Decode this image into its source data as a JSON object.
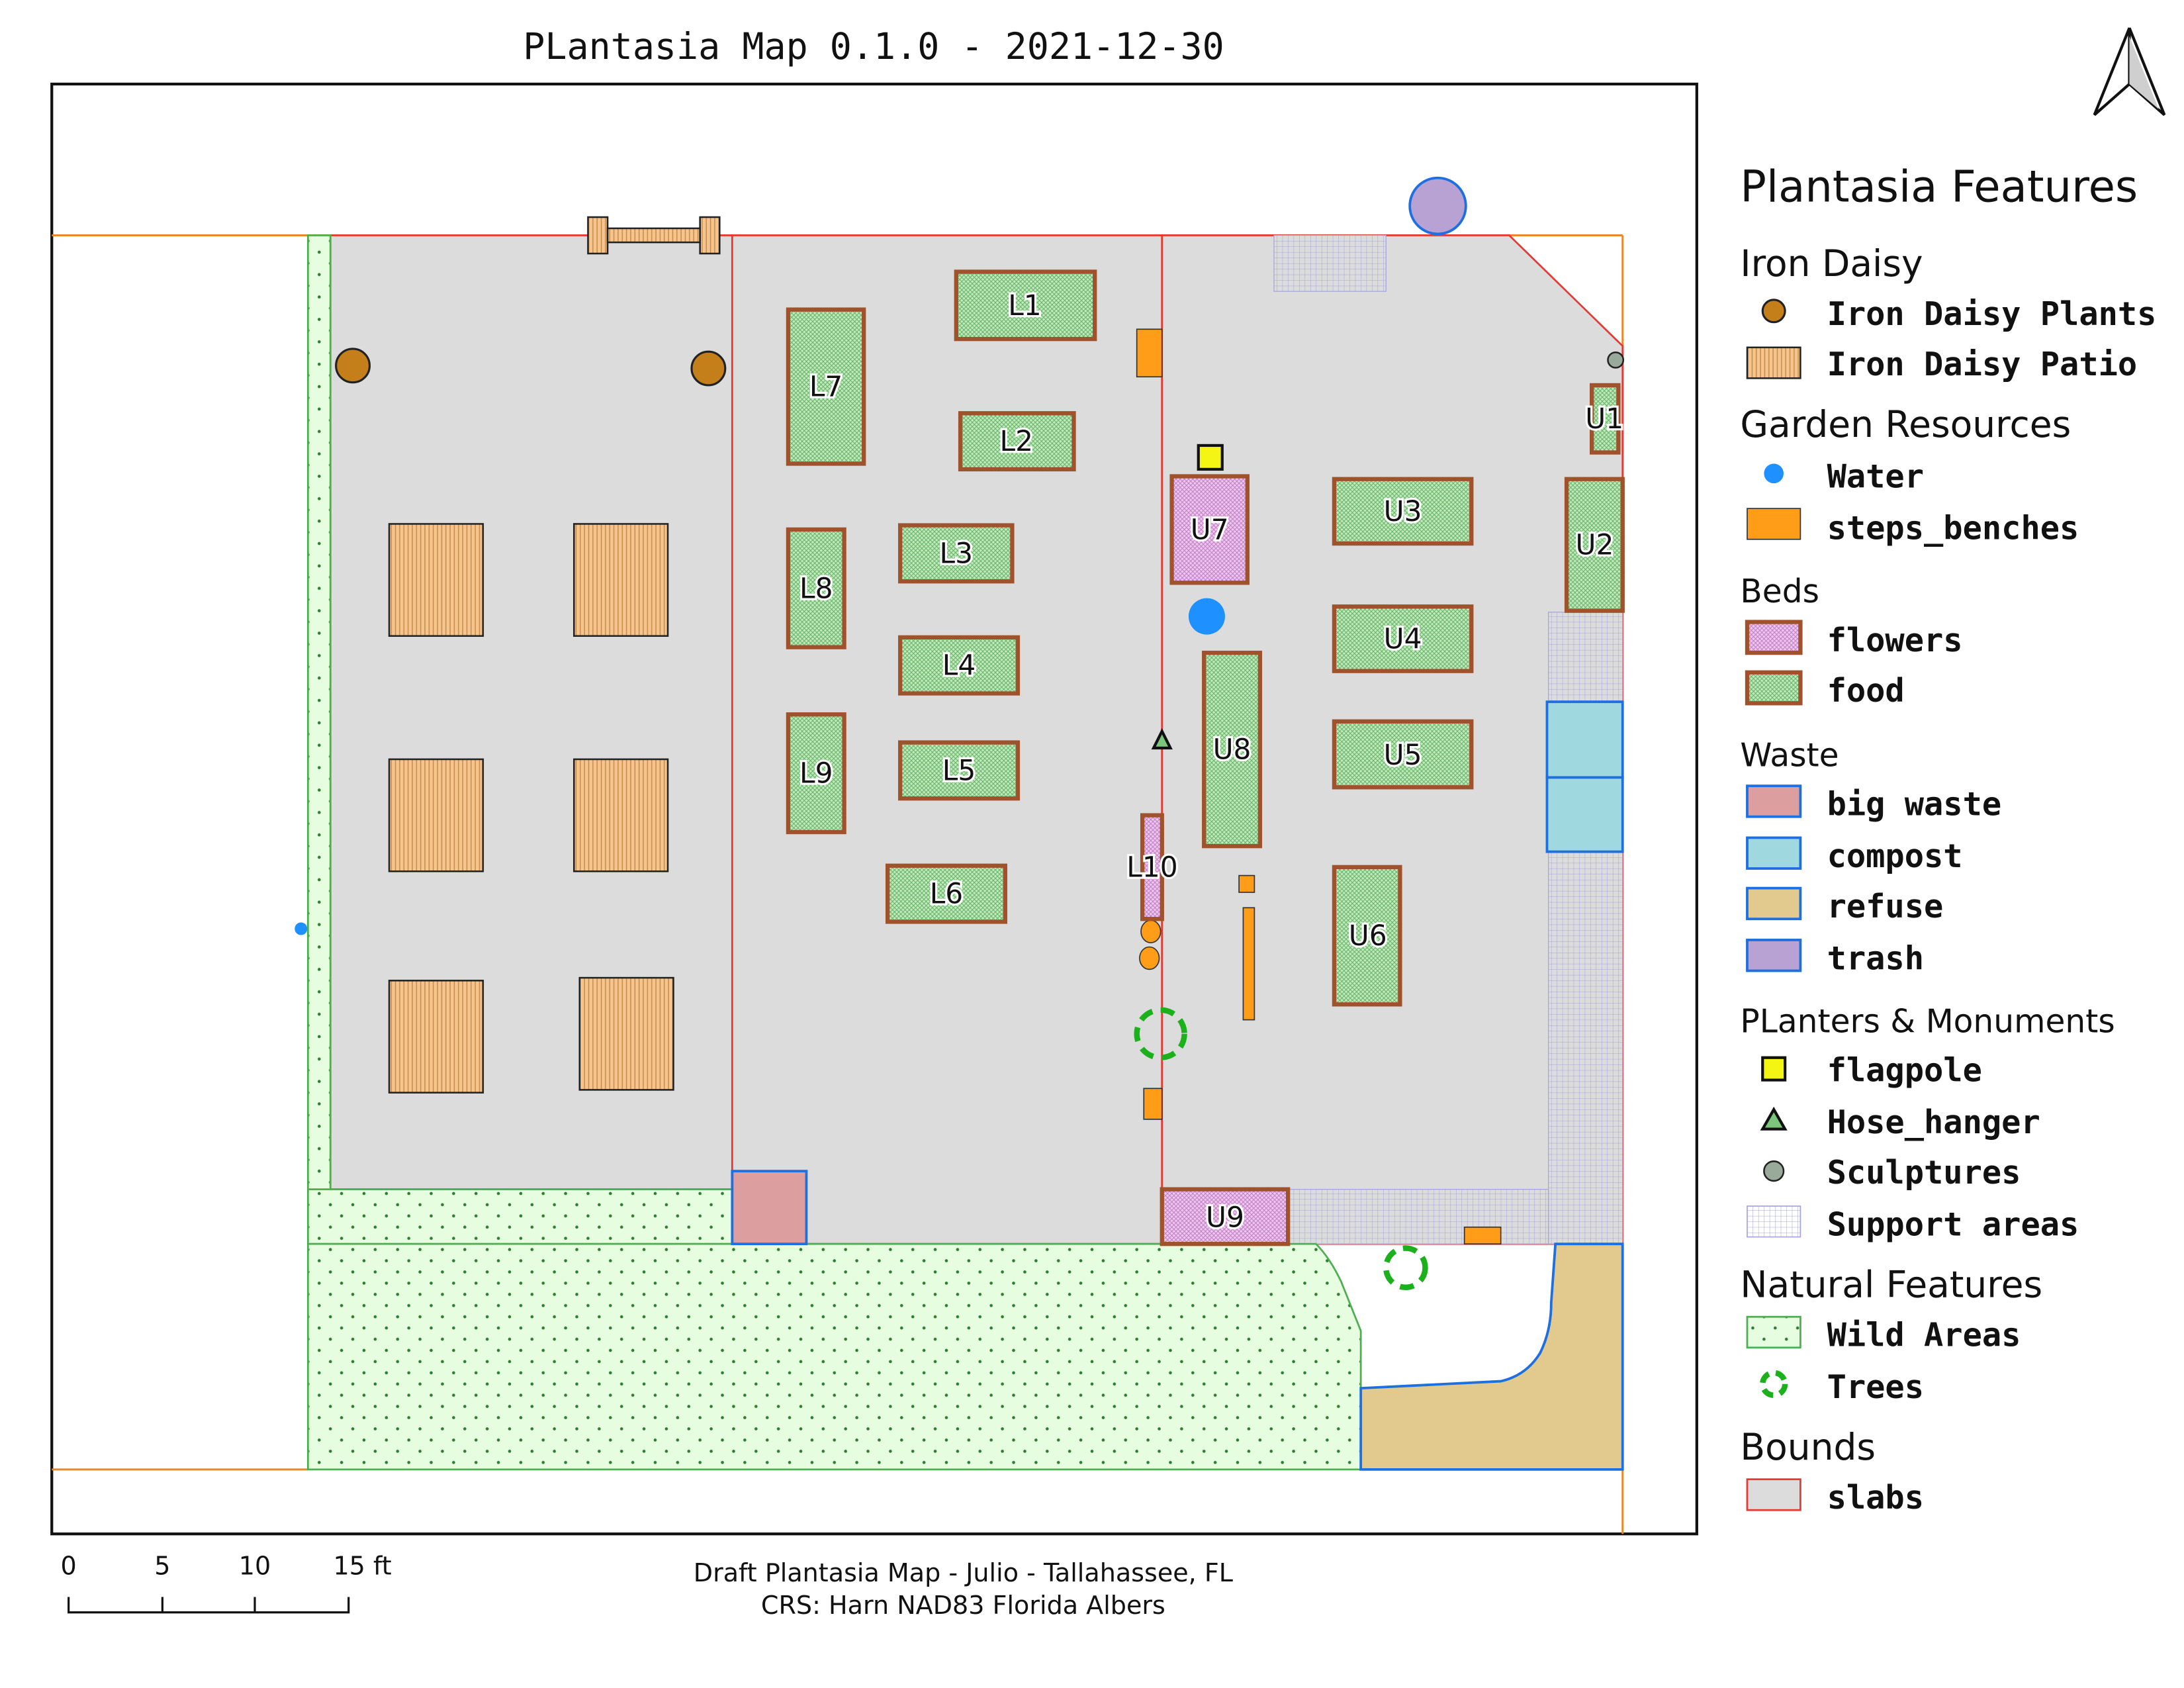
{
  "title": "PLantasia Map 0.1.0 - 2021-12-30",
  "footer": {
    "line1": "Draft Plantasia Map - Julio - Tallahassee, FL",
    "line2": "CRS: Harn NAD83 Florida Albers"
  },
  "scale_bar": {
    "labels": [
      "0",
      "5",
      "10",
      "15 ft"
    ]
  },
  "north_arrow": {
    "icon": "north-arrow-icon"
  },
  "colors": {
    "slab": "#dcdcdc",
    "slab_border": "#e53935",
    "bounds_line": "#e8892b",
    "wild_fill": "#e6fde0",
    "wild_border": "#4caf50",
    "patio_fill": "#f6c58f",
    "food_fill": "#c4e8c0",
    "flower_fill": "#edc8ee",
    "bed_border": "#a0522d",
    "bench": "#ff9d19",
    "water": "#1e90ff",
    "compost": "#9fd8de",
    "refuse": "#e2ca8e",
    "trash": "#b8a2d4",
    "big_waste": "#dc9e9e",
    "waste_border": "#1e6fe0",
    "support": "#b5b5e0",
    "tree": "#1cb01c",
    "iron_daisy": "#c47f1a",
    "flagpole": "#f5f514",
    "sculpture": "#9aaa9a"
  },
  "beds": {
    "L1": "L1",
    "L2": "L2",
    "L3": "L3",
    "L4": "L4",
    "L5": "L5",
    "L6": "L6",
    "L7": "L7",
    "L8": "L8",
    "L9": "L9",
    "L10": "L10",
    "U1": "U1",
    "U2": "U2",
    "U3": "U3",
    "U4": "U4",
    "U5": "U5",
    "U6": "U6",
    "U7": "U7",
    "U8": "U8",
    "U9": "U9"
  },
  "legend": {
    "title": "Plantasia Features",
    "groups": [
      {
        "name": "Iron Daisy",
        "items": [
          {
            "label": "Iron Daisy Plants",
            "icon": "iron-daisy-plant-icon"
          },
          {
            "label": "Iron Daisy Patio",
            "icon": "patio-swatch-icon"
          }
        ]
      },
      {
        "name": "Garden Resources",
        "items": [
          {
            "label": "Water",
            "icon": "water-icon"
          },
          {
            "label": "steps_benches",
            "icon": "bench-swatch-icon"
          }
        ]
      },
      {
        "name": "Beds",
        "items": [
          {
            "label": "flowers",
            "icon": "flower-bed-swatch-icon"
          },
          {
            "label": "food",
            "icon": "food-bed-swatch-icon"
          }
        ]
      },
      {
        "name": "Waste",
        "items": [
          {
            "label": "big waste",
            "icon": "big-waste-swatch-icon"
          },
          {
            "label": "compost",
            "icon": "compost-swatch-icon"
          },
          {
            "label": "refuse",
            "icon": "refuse-swatch-icon"
          },
          {
            "label": "trash",
            "icon": "trash-swatch-icon"
          }
        ]
      },
      {
        "name": "PLanters & Monuments",
        "items": [
          {
            "label": "flagpole",
            "icon": "flagpole-icon"
          },
          {
            "label": "Hose_hanger",
            "icon": "hose-hanger-icon"
          },
          {
            "label": "Sculptures",
            "icon": "sculpture-icon"
          },
          {
            "label": "Support areas",
            "icon": "support-area-swatch-icon"
          }
        ]
      },
      {
        "name": "Natural Features",
        "items": [
          {
            "label": "Wild Areas",
            "icon": "wild-area-swatch-icon"
          },
          {
            "label": "Trees",
            "icon": "tree-icon"
          }
        ]
      },
      {
        "name": "Bounds",
        "items": [
          {
            "label": "slabs",
            "icon": "slab-swatch-icon"
          }
        ]
      }
    ]
  }
}
